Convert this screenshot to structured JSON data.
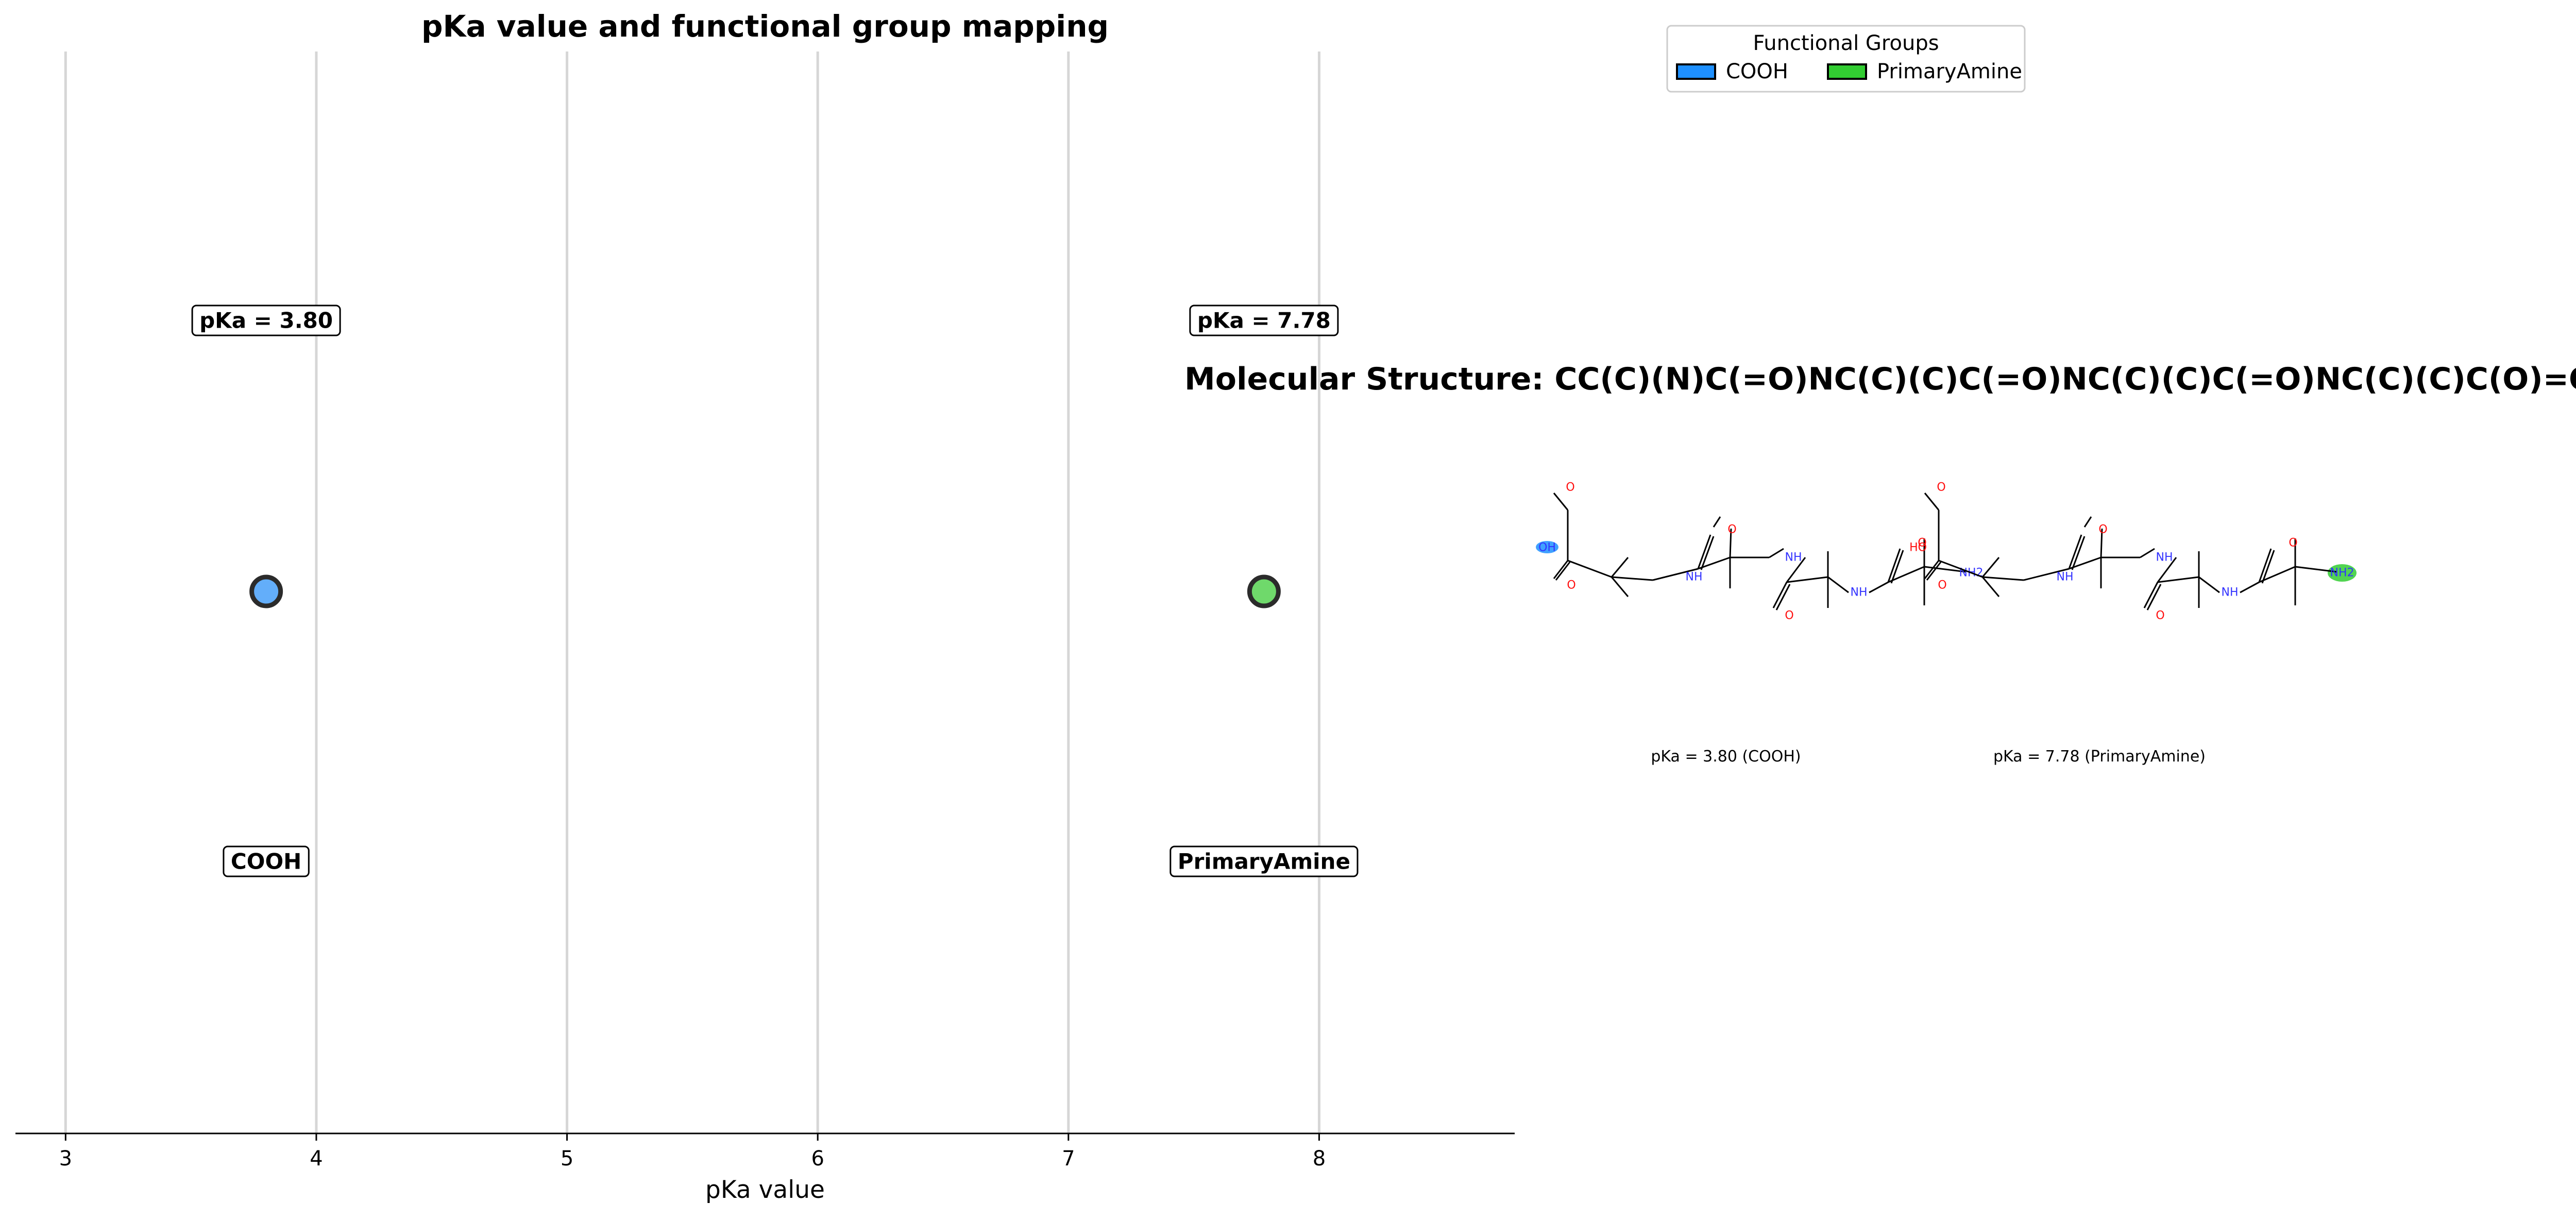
{
  "chart_data": {
    "type": "scatter",
    "title": "pKa value and functional group mapping",
    "xlabel": "pKa value",
    "ylabel": "",
    "xlim": [
      2.8,
      8.78
    ],
    "x_ticks": [
      "3",
      "4",
      "5",
      "6",
      "7",
      "8"
    ],
    "grid": "vertical",
    "points": [
      {
        "x": 3.8,
        "group": "COOH",
        "value_label": "pKa = 3.80",
        "group_label": "COOH",
        "color": "#63AEFA"
      },
      {
        "x": 7.78,
        "group": "PrimaryAmine",
        "value_label": "pKa = 7.78",
        "group_label": "PrimaryAmine",
        "color": "#6FD96B"
      }
    ]
  },
  "legend": {
    "title": "Functional Groups",
    "placement": "top-center",
    "items": [
      {
        "label": "COOH",
        "color": "#1E90FF"
      },
      {
        "label": "PrimaryAmine",
        "color": "#32CD32"
      }
    ]
  },
  "molecule": {
    "title": "Molecular Structure: CC(C)(N)C(=O)NC(C)(C)C(=O)NC(C)(C)C(=O)NC(C)(C)C(O)=O",
    "panels": [
      {
        "caption": "pKa = 3.80 (COOH)",
        "highlight": "acid",
        "highlight_color": "#1E90FF",
        "acid_label": "OH",
        "amine_label": "NH2"
      },
      {
        "caption": "pKa = 7.78 (PrimaryAmine)",
        "highlight": "amine",
        "highlight_color": "#32CD32",
        "acid_label": "HO",
        "amine_label": "NH2"
      }
    ],
    "atom_labels": {
      "O": "O",
      "NH": "NH"
    }
  },
  "colors": {
    "marker_edge": "#2B2B2B",
    "grid": "#D6D6D6",
    "bond": "#000000",
    "oxygen": "#FF0D0D",
    "nitrogen": "#3333FF"
  }
}
